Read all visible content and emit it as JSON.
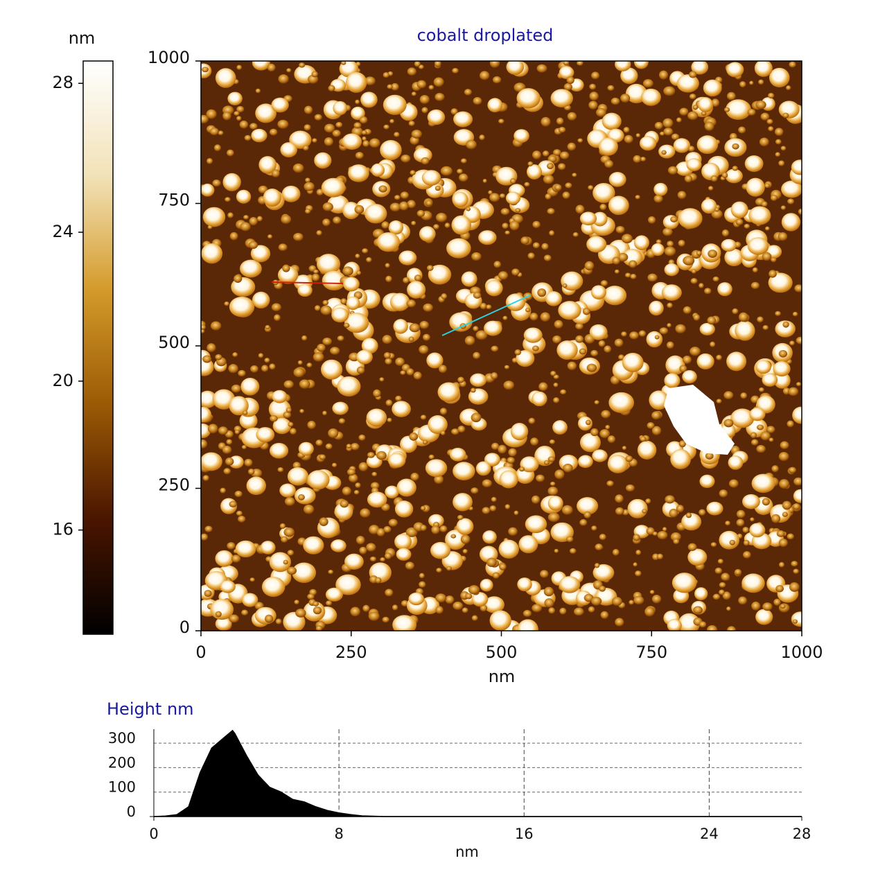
{
  "chart_data": [
    {
      "type": "image",
      "title": "cobalt droplated",
      "xlabel": "nm",
      "xlim": [
        0,
        1000
      ],
      "ylim": [
        0,
        1000
      ],
      "xticks": [
        0,
        250,
        500,
        750,
        1000
      ],
      "yticks": [
        0,
        250,
        500,
        750,
        1000
      ],
      "colorbar": {
        "label": "nm",
        "lim": [
          13.2,
          28.6
        ],
        "ticks": [
          16,
          20,
          24,
          28
        ]
      },
      "colormap": [
        "#000000",
        "#4a1500",
        "#9a5a05",
        "#d49a2a",
        "#f2e2b8",
        "#ffffff"
      ]
    },
    {
      "type": "area",
      "title": "Height nm",
      "xlabel": "nm",
      "xlim": [
        0,
        28
      ],
      "ylim": [
        0,
        357
      ],
      "xticks": [
        0,
        8,
        16,
        24,
        28
      ],
      "yticks": [
        0,
        100,
        200,
        300
      ],
      "grid": true,
      "x": [
        0,
        0.5,
        1,
        1.5,
        2,
        2.5,
        3,
        3.4,
        3.5,
        4,
        4.5,
        5,
        5.5,
        6,
        6.5,
        7,
        7.5,
        8,
        8.5,
        9,
        10,
        28
      ],
      "values": [
        0,
        2,
        8,
        40,
        180,
        280,
        320,
        352,
        340,
        250,
        170,
        120,
        100,
        70,
        60,
        40,
        25,
        15,
        8,
        3,
        0,
        0
      ]
    }
  ]
}
